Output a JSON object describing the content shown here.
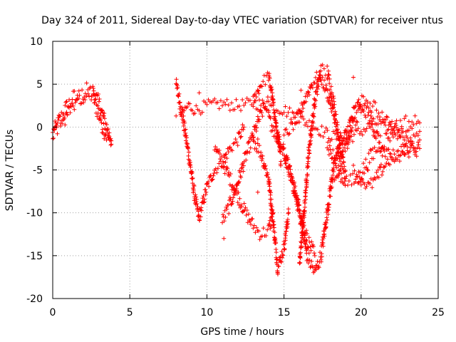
{
  "chart_data": {
    "type": "scatter",
    "title": "Day 324 of 2011, Sidereal Day-to-day VTEC variation (SDTVAR) for receiver ntus",
    "xlabel": "GPS time / hours",
    "ylabel": "SDTVAR / TECUs",
    "xlim": [
      0,
      25
    ],
    "ylim": [
      -20,
      10
    ],
    "xticks": [
      0,
      5,
      10,
      15,
      20,
      25
    ],
    "yticks": [
      -20,
      -15,
      -10,
      -5,
      0,
      5,
      10
    ],
    "grid": true,
    "marker": "+",
    "colors": {
      "series": "#ff0000",
      "grid": "#a0a0a0",
      "axis": "#000000"
    },
    "tracks": [
      {
        "x": [
          0.0,
          0.3,
          0.7,
          1.0,
          1.4,
          1.8,
          2.2,
          2.6,
          3.0,
          3.4,
          3.8
        ],
        "y": [
          -1.0,
          0.0,
          1.5,
          2.5,
          3.3,
          3.5,
          4.0,
          3.8,
          1.5,
          -0.5,
          -2.0
        ],
        "spread": 1.2
      },
      {
        "x": [
          0.0,
          0.3,
          0.7,
          1.0,
          1.4,
          1.8,
          2.2,
          2.6,
          3.0,
          3.4,
          3.8
        ],
        "y": [
          -0.5,
          0.5,
          0.8,
          1.8,
          2.6,
          3.5,
          3.7,
          4.2,
          2.8,
          0.5,
          -1.6
        ],
        "spread": 0.9
      },
      {
        "x": [
          8.0,
          8.4,
          8.8,
          9.2,
          9.5
        ],
        "y": [
          5.0,
          1.5,
          -3.0,
          -8.0,
          -10.8
        ],
        "spread": 0.8
      },
      {
        "x": [
          9.5,
          10.0,
          10.5,
          11.0,
          11.5,
          12.0,
          12.4
        ],
        "y": [
          -10.5,
          -7.0,
          -5.0,
          -4.0,
          -2.5,
          -1.5,
          0.0
        ],
        "spread": 0.7
      },
      {
        "x": [
          8.3,
          8.8,
          9.3,
          10.0,
          11.0,
          12.0,
          13.0,
          14.0,
          15.0,
          16.0,
          17.0,
          18.0,
          19.0,
          20.0,
          21.0,
          22.0,
          23.0,
          23.8
        ],
        "y": [
          1.5,
          2.5,
          2.0,
          2.5,
          2.7,
          2.5,
          2.8,
          2.5,
          2.0,
          1.0,
          0.0,
          -1.0,
          -1.5,
          -0.5,
          0.5,
          0.0,
          -1.0,
          -0.5
        ],
        "spread": 0.7
      },
      {
        "x": [
          10.5,
          11.0,
          11.5,
          12.0,
          12.5,
          13.0,
          13.5,
          14.0,
          14.3
        ],
        "y": [
          -2.5,
          -4.0,
          -6.0,
          -8.0,
          -10.0,
          -11.5,
          -12.5,
          -12.0,
          -10.0
        ],
        "spread": 0.8
      },
      {
        "x": [
          11.0,
          11.5,
          12.0,
          12.5,
          13.0,
          13.5,
          14.0
        ],
        "y": [
          -11.0,
          -9.0,
          -6.5,
          -3.5,
          -1.0,
          1.5,
          3.0
        ],
        "spread": 0.8
      },
      {
        "x": [
          13.0,
          13.5,
          14.0,
          14.2,
          14.5,
          14.8
        ],
        "y": [
          3.0,
          5.0,
          6.0,
          4.0,
          0.0,
          -4.0
        ],
        "spread": 0.7
      },
      {
        "x": [
          13.0,
          13.5,
          14.0,
          14.3,
          14.6,
          15.0,
          15.3
        ],
        "y": [
          -1.5,
          -3.0,
          -6.0,
          -11.0,
          -16.5,
          -14.0,
          -10.0
        ],
        "spread": 0.8
      },
      {
        "x": [
          14.5,
          15.0,
          15.5,
          16.0,
          16.5,
          17.0
        ],
        "y": [
          -1.0,
          -3.0,
          -6.0,
          -9.5,
          -13.0,
          -15.0
        ],
        "spread": 0.8
      },
      {
        "x": [
          14.0,
          14.5,
          15.0,
          15.5,
          16.0,
          16.5,
          17.0,
          17.4,
          17.8,
          18.2,
          18.7
        ],
        "y": [
          1.0,
          -1.0,
          -3.0,
          -6.0,
          -10.0,
          -15.0,
          -17.0,
          -15.0,
          -10.0,
          -5.0,
          -1.0
        ],
        "spread": 0.9
      },
      {
        "x": [
          16.0,
          16.3,
          16.6,
          17.0,
          17.4,
          17.8,
          18.2,
          18.6,
          19.0
        ],
        "y": [
          -16.0,
          -10.0,
          -3.0,
          3.0,
          6.5,
          6.5,
          3.0,
          -2.0,
          -6.0
        ],
        "spread": 0.9
      },
      {
        "x": [
          15.0,
          15.5,
          16.0,
          16.3,
          16.8,
          17.3,
          17.8,
          18.3
        ],
        "y": [
          -1.0,
          0.0,
          1.5,
          3.0,
          5.0,
          6.2,
          4.0,
          1.0
        ],
        "spread": 0.7
      },
      {
        "x": [
          18.5,
          19.0,
          19.5,
          20.0,
          20.5,
          21.0,
          21.5,
          22.0,
          22.5,
          23.0,
          23.5,
          23.8
        ],
        "y": [
          -3.0,
          -1.0,
          1.5,
          3.0,
          1.5,
          -1.0,
          -3.0,
          -4.0,
          -3.5,
          -2.5,
          -2.0,
          -1.5
        ],
        "spread": 1.0
      },
      {
        "x": [
          17.8,
          18.3,
          18.8,
          19.3,
          19.8,
          20.3,
          20.8,
          21.3,
          21.8,
          22.3,
          22.8,
          23.3,
          23.8
        ],
        "y": [
          -2.0,
          -4.0,
          -6.0,
          -6.5,
          -6.0,
          -4.5,
          -3.0,
          -2.0,
          -1.0,
          0.0,
          0.5,
          0.5,
          0.5
        ],
        "spread": 1.0
      },
      {
        "x": [
          18.0,
          18.5,
          19.0,
          19.5,
          20.0,
          20.5,
          21.0,
          21.5,
          22.0,
          22.5,
          23.0,
          23.5,
          23.8
        ],
        "y": [
          -6.0,
          -5.0,
          -2.5,
          0.5,
          2.0,
          2.5,
          2.0,
          1.0,
          0.0,
          -1.0,
          -2.0,
          -2.5,
          -2.5
        ],
        "spread": 0.9
      },
      {
        "x": [
          19.5,
          20.0,
          20.5,
          21.0,
          21.5,
          22.0,
          22.5,
          23.0,
          23.5
        ],
        "y": [
          -5.0,
          -6.0,
          -7.0,
          -6.0,
          -4.5,
          -3.5,
          -3.0,
          -2.8,
          -2.5
        ],
        "spread": 0.8
      }
    ],
    "outliers": [
      {
        "x": 9.5,
        "y": 4.0
      },
      {
        "x": 19.5,
        "y": 5.8
      },
      {
        "x": 16.1,
        "y": 4.3
      },
      {
        "x": 11.1,
        "y": -13.0
      },
      {
        "x": 13.3,
        "y": -7.6
      },
      {
        "x": 18.1,
        "y": 4.0
      },
      {
        "x": 13.3,
        "y": -1.4
      },
      {
        "x": 8.0,
        "y": 1.3
      }
    ]
  }
}
